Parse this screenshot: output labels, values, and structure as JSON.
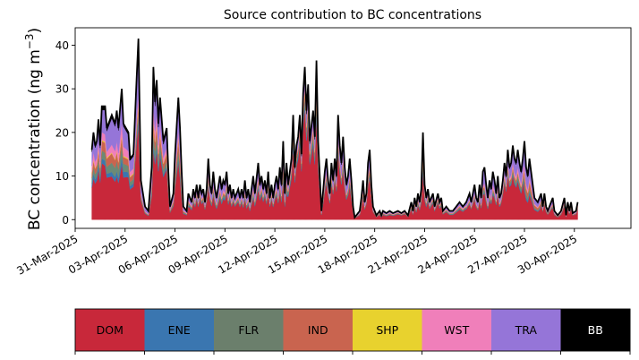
{
  "chart_data": {
    "type": "area",
    "stacked": true,
    "title": "Source contribution to BC concentrations",
    "ylabel": "BC concentration (ng m",
    "ylabel_sup": "−3",
    "ylabel_close": ")",
    "xlabel": "",
    "ylim": [
      -2,
      44
    ],
    "yticks": [
      0,
      10,
      20,
      30,
      40
    ],
    "x_start": "2025-04-01",
    "x_step_days": 0.25,
    "xlim_days": [
      -1.0,
      32.4
    ],
    "xticks": [
      {
        "day": -1,
        "label": "31-Mar-2025"
      },
      {
        "day": 2,
        "label": "03-Apr-2025"
      },
      {
        "day": 5,
        "label": "06-Apr-2025"
      },
      {
        "day": 8,
        "label": "09-Apr-2025"
      },
      {
        "day": 11,
        "label": "12-Apr-2025"
      },
      {
        "day": 14,
        "label": "15-Apr-2025"
      },
      {
        "day": 17,
        "label": "18-Apr-2025"
      },
      {
        "day": 20,
        "label": "21-Apr-2025"
      },
      {
        "day": 23,
        "label": "24-Apr-2025"
      },
      {
        "day": 26,
        "label": "27-Apr-2025"
      },
      {
        "day": 29,
        "label": "30-Apr-2025"
      }
    ],
    "total_anchors": [
      [
        0.0,
        16
      ],
      [
        0.1,
        20
      ],
      [
        0.2,
        17
      ],
      [
        0.3,
        18
      ],
      [
        0.4,
        23
      ],
      [
        0.5,
        17
      ],
      [
        0.6,
        26
      ],
      [
        0.8,
        26
      ],
      [
        0.9,
        21
      ],
      [
        1.0,
        22
      ],
      [
        1.2,
        24
      ],
      [
        1.4,
        22
      ],
      [
        1.5,
        25
      ],
      [
        1.6,
        21
      ],
      [
        1.8,
        30
      ],
      [
        1.9,
        22
      ],
      [
        2.2,
        20
      ],
      [
        2.3,
        14
      ],
      [
        2.5,
        15
      ],
      [
        2.7,
        33
      ],
      [
        2.8,
        41.5
      ],
      [
        2.95,
        9
      ],
      [
        3.2,
        3
      ],
      [
        3.4,
        2
      ],
      [
        3.6,
        12
      ],
      [
        3.7,
        35
      ],
      [
        3.8,
        27
      ],
      [
        3.9,
        32
      ],
      [
        4.0,
        22
      ],
      [
        4.1,
        28
      ],
      [
        4.2,
        23
      ],
      [
        4.3,
        18
      ],
      [
        4.5,
        21
      ],
      [
        4.6,
        11
      ],
      [
        4.7,
        3
      ],
      [
        4.9,
        6
      ],
      [
        5.0,
        15
      ],
      [
        5.2,
        28
      ],
      [
        5.3,
        21
      ],
      [
        5.4,
        11
      ],
      [
        5.5,
        3
      ],
      [
        5.7,
        2
      ],
      [
        5.8,
        6
      ],
      [
        6.0,
        4
      ],
      [
        6.1,
        7
      ],
      [
        6.2,
        5
      ],
      [
        6.3,
        8
      ],
      [
        6.4,
        5
      ],
      [
        6.5,
        8
      ],
      [
        6.6,
        6
      ],
      [
        6.7,
        7
      ],
      [
        6.8,
        4
      ],
      [
        6.9,
        7
      ],
      [
        7.0,
        14
      ],
      [
        7.1,
        8
      ],
      [
        7.2,
        6
      ],
      [
        7.3,
        11
      ],
      [
        7.4,
        7
      ],
      [
        7.5,
        5
      ],
      [
        7.7,
        10
      ],
      [
        7.8,
        7
      ],
      [
        7.9,
        9
      ],
      [
        8.0,
        8
      ],
      [
        8.1,
        11
      ],
      [
        8.2,
        6
      ],
      [
        8.3,
        8
      ],
      [
        8.4,
        5
      ],
      [
        8.5,
        7
      ],
      [
        8.6,
        5
      ],
      [
        8.7,
        6
      ],
      [
        8.8,
        7
      ],
      [
        8.9,
        5
      ],
      [
        9.0,
        7
      ],
      [
        9.1,
        5
      ],
      [
        9.2,
        9
      ],
      [
        9.3,
        5
      ],
      [
        9.4,
        7
      ],
      [
        9.5,
        4
      ],
      [
        9.6,
        7
      ],
      [
        9.7,
        10
      ],
      [
        9.8,
        6
      ],
      [
        10.0,
        13
      ],
      [
        10.1,
        8
      ],
      [
        10.2,
        10
      ],
      [
        10.3,
        7
      ],
      [
        10.4,
        9
      ],
      [
        10.5,
        6
      ],
      [
        10.6,
        11
      ],
      [
        10.7,
        5
      ],
      [
        10.8,
        8
      ],
      [
        10.9,
        5
      ],
      [
        11.0,
        8
      ],
      [
        11.1,
        10
      ],
      [
        11.2,
        7
      ],
      [
        11.3,
        12
      ],
      [
        11.4,
        8
      ],
      [
        11.5,
        18
      ],
      [
        11.6,
        6
      ],
      [
        11.7,
        13
      ],
      [
        11.8,
        8
      ],
      [
        12.0,
        14
      ],
      [
        12.1,
        24
      ],
      [
        12.2,
        12
      ],
      [
        12.3,
        17
      ],
      [
        12.4,
        19
      ],
      [
        12.5,
        24
      ],
      [
        12.6,
        15
      ],
      [
        12.7,
        29
      ],
      [
        12.8,
        35
      ],
      [
        12.9,
        25
      ],
      [
        13.0,
        31
      ],
      [
        13.1,
        18
      ],
      [
        13.3,
        25
      ],
      [
        13.4,
        19
      ],
      [
        13.5,
        36.5
      ],
      [
        13.6,
        18
      ],
      [
        13.7,
        10
      ],
      [
        13.8,
        2
      ],
      [
        14.0,
        11
      ],
      [
        14.1,
        14
      ],
      [
        14.2,
        9
      ],
      [
        14.3,
        6
      ],
      [
        14.4,
        13
      ],
      [
        14.5,
        9
      ],
      [
        14.6,
        14
      ],
      [
        14.7,
        10
      ],
      [
        14.8,
        24
      ],
      [
        14.9,
        17
      ],
      [
        15.0,
        13
      ],
      [
        15.1,
        19
      ],
      [
        15.2,
        12
      ],
      [
        15.3,
        8
      ],
      [
        15.4,
        10
      ],
      [
        15.5,
        14
      ],
      [
        15.6,
        9
      ],
      [
        15.7,
        3
      ],
      [
        15.8,
        0.5
      ],
      [
        16.1,
        2
      ],
      [
        16.2,
        5
      ],
      [
        16.3,
        9
      ],
      [
        16.4,
        4
      ],
      [
        16.5,
        6
      ],
      [
        16.6,
        13
      ],
      [
        16.7,
        16
      ],
      [
        16.8,
        8
      ],
      [
        16.9,
        3
      ],
      [
        17.1,
        1
      ],
      [
        17.3,
        2
      ],
      [
        17.4,
        1
      ],
      [
        17.5,
        2
      ],
      [
        17.7,
        1.5
      ],
      [
        17.9,
        2
      ],
      [
        18.1,
        1.5
      ],
      [
        18.4,
        2
      ],
      [
        18.6,
        1.5
      ],
      [
        18.8,
        2
      ],
      [
        19.0,
        1
      ],
      [
        19.2,
        4
      ],
      [
        19.3,
        2
      ],
      [
        19.4,
        5
      ],
      [
        19.5,
        3
      ],
      [
        19.6,
        6
      ],
      [
        19.7,
        4
      ],
      [
        19.8,
        7
      ],
      [
        19.9,
        20
      ],
      [
        20.0,
        8
      ],
      [
        20.1,
        5
      ],
      [
        20.2,
        7
      ],
      [
        20.3,
        4
      ],
      [
        20.5,
        6
      ],
      [
        20.6,
        3
      ],
      [
        20.8,
        6
      ],
      [
        20.9,
        4
      ],
      [
        21.0,
        5
      ],
      [
        21.1,
        2
      ],
      [
        21.3,
        3
      ],
      [
        21.5,
        2
      ],
      [
        21.7,
        2
      ],
      [
        21.9,
        3
      ],
      [
        22.1,
        4
      ],
      [
        22.3,
        3
      ],
      [
        22.5,
        4
      ],
      [
        22.7,
        6
      ],
      [
        22.8,
        4
      ],
      [
        22.9,
        6
      ],
      [
        23.0,
        8
      ],
      [
        23.1,
        5
      ],
      [
        23.2,
        4
      ],
      [
        23.3,
        8
      ],
      [
        23.4,
        5
      ],
      [
        23.5,
        11
      ],
      [
        23.6,
        12
      ],
      [
        23.7,
        8
      ],
      [
        23.8,
        5
      ],
      [
        23.9,
        9
      ],
      [
        24.0,
        7
      ],
      [
        24.1,
        11
      ],
      [
        24.2,
        9
      ],
      [
        24.3,
        6
      ],
      [
        24.4,
        10
      ],
      [
        24.5,
        5
      ],
      [
        24.6,
        6
      ],
      [
        24.7,
        9
      ],
      [
        24.8,
        13
      ],
      [
        24.9,
        10
      ],
      [
        25.0,
        16
      ],
      [
        25.1,
        12
      ],
      [
        25.2,
        13
      ],
      [
        25.3,
        17
      ],
      [
        25.4,
        14
      ],
      [
        25.5,
        13
      ],
      [
        25.6,
        16
      ],
      [
        25.7,
        13
      ],
      [
        25.8,
        11
      ],
      [
        25.9,
        14
      ],
      [
        26.0,
        18
      ],
      [
        26.1,
        12
      ],
      [
        26.2,
        10
      ],
      [
        26.3,
        14
      ],
      [
        26.4,
        11
      ],
      [
        26.5,
        8
      ],
      [
        26.6,
        5
      ],
      [
        26.8,
        4
      ],
      [
        27.0,
        6
      ],
      [
        27.1,
        3
      ],
      [
        27.2,
        6
      ],
      [
        27.3,
        3
      ],
      [
        27.4,
        2
      ],
      [
        27.6,
        4
      ],
      [
        27.7,
        5
      ],
      [
        27.8,
        2
      ],
      [
        28.0,
        1
      ],
      [
        28.2,
        2
      ],
      [
        28.4,
        5
      ],
      [
        28.5,
        1
      ],
      [
        28.6,
        4
      ],
      [
        28.7,
        2
      ],
      [
        28.8,
        4
      ],
      [
        28.9,
        1.5
      ],
      [
        29.1,
        2
      ],
      [
        29.2,
        4
      ]
    ],
    "source_fractions": [
      {
        "name": "DOM",
        "color": "#c8283a",
        "fractions": [
          0.45,
          0.5,
          0.5,
          0.55,
          0.7,
          0.6,
          0.55,
          0.6,
          0.55,
          0.6,
          0.4,
          0.6
        ]
      },
      {
        "name": "ENE",
        "color": "#3a76b0",
        "fractions": [
          0.05,
          0.03,
          0.03,
          0.04,
          0.04,
          0.03,
          0.03,
          0.04,
          0.03,
          0.03,
          0.04,
          0.03
        ]
      },
      {
        "name": "FLR",
        "color": "#6b8a76",
        "fractions": [
          0.08,
          0.05,
          0.07,
          0.06,
          0.05,
          0.05,
          0.05,
          0.06,
          0.05,
          0.05,
          0.06,
          0.05
        ]
      },
      {
        "name": "IND",
        "color": "#c9644f",
        "fractions": [
          0.08,
          0.04,
          0.08,
          0.05,
          0.04,
          0.04,
          0.05,
          0.06,
          0.04,
          0.04,
          0.12,
          0.05
        ]
      },
      {
        "name": "SHP",
        "color": "#e8d22e",
        "fractions": [
          0.01,
          0.01,
          0.01,
          0.01,
          0.01,
          0.01,
          0.01,
          0.01,
          0.01,
          0.01,
          0.01,
          0.01
        ]
      },
      {
        "name": "WST",
        "color": "#f07fba",
        "fractions": [
          0.08,
          0.06,
          0.07,
          0.06,
          0.04,
          0.05,
          0.06,
          0.06,
          0.06,
          0.06,
          0.06,
          0.06
        ]
      },
      {
        "name": "TRA",
        "color": "#9575d8",
        "fractions": [
          0.22,
          0.27,
          0.2,
          0.19,
          0.09,
          0.19,
          0.22,
          0.14,
          0.23,
          0.18,
          0.28,
          0.17
        ]
      },
      {
        "name": "BB",
        "color": "#000000",
        "fractions": [
          0.03,
          0.04,
          0.04,
          0.04,
          0.03,
          0.03,
          0.03,
          0.03,
          0.03,
          0.03,
          0.03,
          0.03
        ]
      }
    ],
    "fraction_segment_days": [
      0,
      2.6,
      3.6,
      5.6,
      11.8,
      13.8,
      16.0,
      17.0,
      22.5,
      24.6,
      26.0,
      27.0,
      29.2
    ]
  },
  "legend": [
    {
      "label": "DOM",
      "color": "#c8283a",
      "text_color": "#000000"
    },
    {
      "label": "ENE",
      "color": "#3a76b0",
      "text_color": "#000000"
    },
    {
      "label": "FLR",
      "color": "#6b7f6c",
      "text_color": "#000000"
    },
    {
      "label": "IND",
      "color": "#c9644f",
      "text_color": "#000000"
    },
    {
      "label": "SHP",
      "color": "#e8d22e",
      "text_color": "#000000"
    },
    {
      "label": "WST",
      "color": "#f07fba",
      "text_color": "#000000"
    },
    {
      "label": "TRA",
      "color": "#9575d8",
      "text_color": "#000000"
    },
    {
      "label": "BB",
      "color": "#000000",
      "text_color": "#ffffff"
    }
  ]
}
